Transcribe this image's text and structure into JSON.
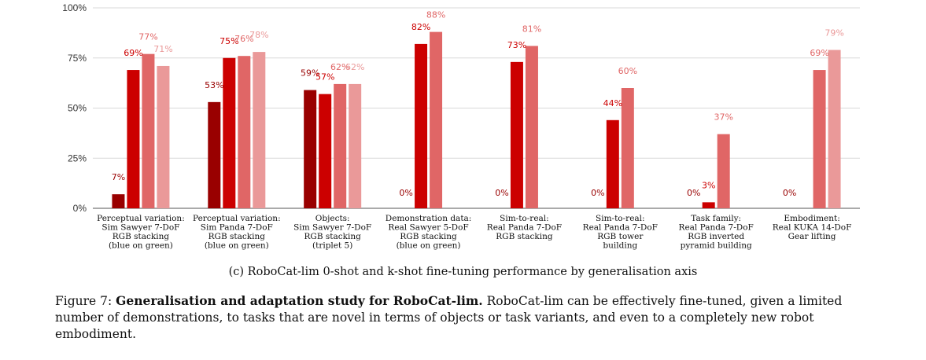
{
  "chart_data": {
    "type": "bar",
    "title": "",
    "xlabel": "",
    "ylabel": "",
    "ylim": [
      0,
      100
    ],
    "yticks": [
      "0%",
      "25%",
      "50%",
      "75%",
      "100%"
    ],
    "grid": true,
    "legend": "none",
    "categories": [
      [
        "Perceptual variation:",
        "Sim Sawyer 7-DoF",
        "RGB stacking",
        "(blue on green)"
      ],
      [
        "Perceptual variation:",
        "Sim Panda 7-DoF",
        "RGB stacking",
        "(blue on green)"
      ],
      [
        "Objects:",
        "Sim Sawyer 7-DoF",
        "RGB stacking",
        "(triplet 5)"
      ],
      [
        "Demonstration data:",
        "Real Sawyer 5-DoF",
        "RGB stacking",
        "(blue on green)"
      ],
      [
        "Sim-to-real:",
        "Real Panda 7-DoF",
        "RGB stacking"
      ],
      [
        "Sim-to-real:",
        "Real Panda 7-DoF",
        "RGB tower",
        "building"
      ],
      [
        "Task family:",
        "Real Panda 7-DoF",
        "RGB inverted",
        "pyramid building"
      ],
      [
        "Embodiment:",
        "Real KUKA 14-DoF",
        "Gear lifting"
      ]
    ],
    "series": [
      {
        "color": "#990000",
        "values": [
          7,
          53,
          59,
          null,
          null,
          null,
          null,
          null
        ],
        "labels": [
          "7%",
          "53%",
          "59%",
          null,
          null,
          null,
          null,
          null
        ]
      },
      {
        "color": "#cc0000",
        "values": [
          69,
          75,
          57,
          82,
          73,
          44,
          3,
          null
        ],
        "labels": [
          "69%",
          "75%",
          "57%",
          "82%",
          "73%",
          "44%",
          "3%",
          null
        ]
      },
      {
        "color": "#e06666",
        "values": [
          77,
          76,
          62,
          88,
          81,
          60,
          37,
          69
        ],
        "labels": [
          "77%",
          "76%",
          "62%",
          "88%",
          "81%",
          "60%",
          "37%",
          "69%"
        ]
      },
      {
        "color": "#ea9999",
        "values": [
          71,
          78,
          62,
          null,
          null,
          null,
          null,
          79
        ],
        "labels": [
          "71%",
          "78%",
          "62%",
          null,
          null,
          null,
          null,
          "79%"
        ]
      }
    ],
    "zero_labels": [
      {
        "category": 3,
        "text": "0%"
      },
      {
        "category": 4,
        "text": "0%"
      },
      {
        "category": 5,
        "text": "0%"
      },
      {
        "category": 6,
        "text": "0%"
      },
      {
        "category": 7,
        "text": "0%"
      }
    ]
  },
  "captions": {
    "subcaption": "(c) RoboCat-lim 0-shot and k-shot fine-tuning performance by generalisation axis",
    "figure_label": "Figure 7:",
    "figure_bold": "Generalisation and adaptation study for RoboCat-lim.",
    "figure_text": "RoboCat-lim can be effectively fine-tuned, given a limited number of demonstrations, to tasks that are novel in terms of objects or task variants, and even to a completely new robot embodiment."
  }
}
